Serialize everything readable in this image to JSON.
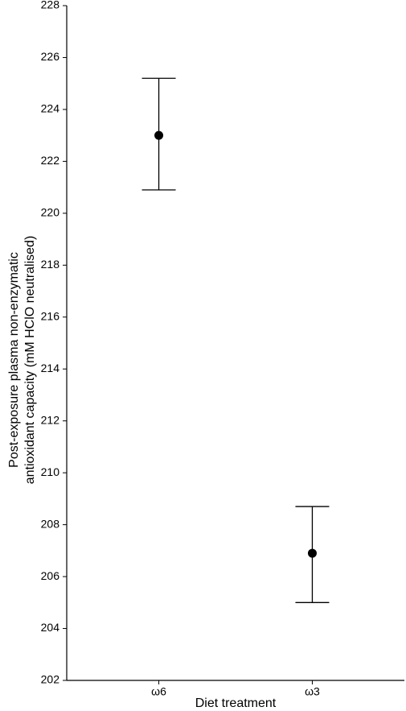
{
  "chart_data": {
    "type": "pointrange",
    "x_label": "Diet treatment",
    "y_label": [
      "Post-exposure plasma non-enzymatic",
      "antioxidant capacity (mM HClO neutralised)"
    ],
    "categories": [
      "ω6",
      "ω3"
    ],
    "series": [
      {
        "color": "#000000",
        "values": [
          223.0,
          206.9
        ],
        "lower": [
          220.9,
          205.0
        ],
        "upper": [
          225.2,
          208.7
        ]
      }
    ],
    "ylim": [
      202,
      228
    ],
    "yticks": [
      202,
      204,
      206,
      208,
      210,
      212,
      214,
      216,
      218,
      220,
      222,
      224,
      226,
      228
    ],
    "grid": false
  }
}
